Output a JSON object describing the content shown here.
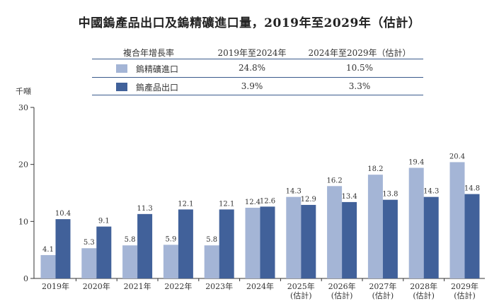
{
  "chart_data": {
    "type": "bar",
    "title": "中國鎢產品出口及鎢精礦進口量，2019年至2029年（估計）",
    "ylabel": "千噸",
    "ylim": [
      0,
      30
    ],
    "yticks": [
      0,
      10,
      20,
      30
    ],
    "categories": [
      [
        "2019年"
      ],
      [
        "2020年"
      ],
      [
        "2021年"
      ],
      [
        "2022年"
      ],
      [
        "2023年"
      ],
      [
        "2024年"
      ],
      [
        "2025年",
        "(估計)"
      ],
      [
        "2026年",
        "(估計)"
      ],
      [
        "2027年",
        "(估計)"
      ],
      [
        "2028年",
        "(估計)"
      ],
      [
        "2029年",
        "(估計)"
      ]
    ],
    "series": [
      {
        "name": "鎢精礦進口",
        "color": "#a4b5d6",
        "values": [
          4.1,
          5.3,
          5.8,
          5.9,
          5.8,
          12.4,
          14.3,
          16.2,
          18.2,
          19.4,
          20.4
        ]
      },
      {
        "name": "鎢產品出口",
        "color": "#41619a",
        "values": [
          10.4,
          9.1,
          11.3,
          12.1,
          12.1,
          12.6,
          12.9,
          13.4,
          13.8,
          14.3,
          14.8
        ]
      }
    ],
    "grid": false,
    "legend": "top-table"
  },
  "table": {
    "header": [
      "複合年增長率",
      "2019年至2024年",
      "2024年至2029年（估計）"
    ],
    "rows": [
      {
        "label": "鎢精礦進口",
        "values": [
          "24.8%",
          "10.5%"
        ]
      },
      {
        "label": "鎢產品出口",
        "values": [
          "3.9%",
          "3.3%"
        ]
      }
    ]
  }
}
